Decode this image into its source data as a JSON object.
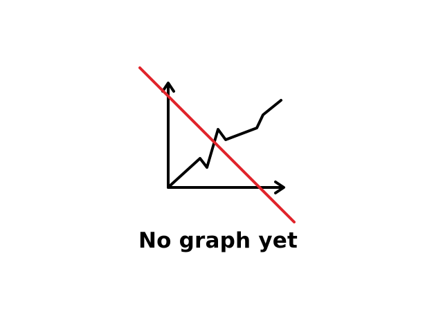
{
  "empty_state": {
    "message": "No graph yet",
    "illustration": "no-graph-icon",
    "colors": {
      "text": "#000000",
      "strike": "#e0242b",
      "background": "#ffffff"
    }
  }
}
